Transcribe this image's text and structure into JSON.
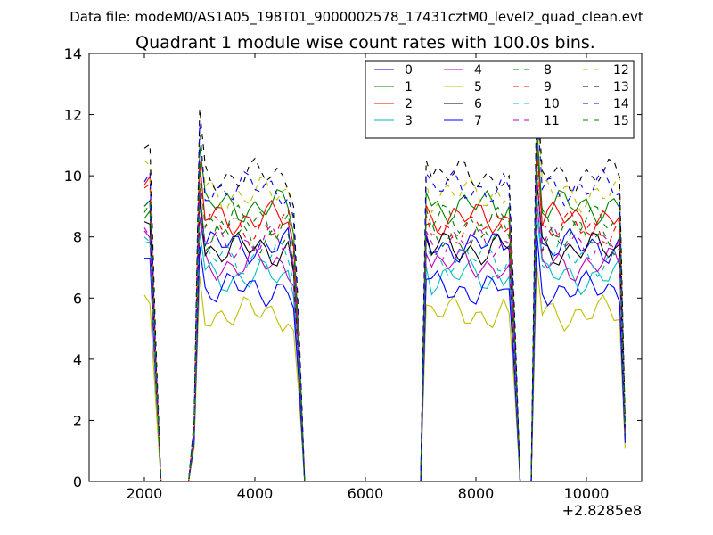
{
  "figure": {
    "suptitle": "Data file: modeM0/AS1A05_198T01_9000002578_17431cztM0_level2_quad_clean.evt"
  },
  "chart_data": {
    "type": "line",
    "title": "Quadrant 1 module wise count rates with 100.0s bins.",
    "xlabel": "",
    "ylabel": "",
    "x_offset_label": "+2.8285e8",
    "xlim": [
      1000,
      11000
    ],
    "ylim": [
      0,
      14
    ],
    "xticks": [
      2000,
      4000,
      6000,
      8000,
      10000
    ],
    "xtick_labels": [
      "2000",
      "4000",
      "6000",
      "8000",
      "10000"
    ],
    "yticks": [
      0,
      2,
      4,
      6,
      8,
      10,
      12,
      14
    ],
    "ytick_labels": [
      "0",
      "2",
      "4",
      "6",
      "8",
      "10",
      "12",
      "14"
    ],
    "legend": {
      "location": "top-right",
      "columns": 4
    },
    "bins": {
      "x_start": 2000,
      "step": 100,
      "segments": [
        [
          2000,
          2200
        ],
        [
          2900,
          4700
        ],
        [
          7100,
          8700
        ],
        [
          9100,
          10600
        ]
      ],
      "zero_ranges": [
        [
          2300,
          2700
        ],
        [
          4900,
          7000
        ],
        [
          8900,
          9000
        ]
      ],
      "end_x": 10700
    },
    "series": [
      {
        "name": "0",
        "color": "#0000ff",
        "dash": "solid",
        "level": 7.7,
        "start": 7.3
      },
      {
        "name": "1",
        "color": "#008000",
        "dash": "solid",
        "level": 9.0,
        "start": 8.6
      },
      {
        "name": "2",
        "color": "#ff0000",
        "dash": "solid",
        "level": 8.6,
        "start": 9.7
      },
      {
        "name": "3",
        "color": "#00bfbf",
        "dash": "solid",
        "level": 6.7,
        "start": 7.8
      },
      {
        "name": "4",
        "color": "#bf00bf",
        "dash": "solid",
        "level": 7.1,
        "start": 8.2
      },
      {
        "name": "5",
        "color": "#bfbf00",
        "dash": "solid",
        "level": 5.5,
        "start": 6.1
      },
      {
        "name": "6",
        "color": "#000000",
        "dash": "solid",
        "level": 7.6,
        "start": 8.5
      },
      {
        "name": "7",
        "color": "#0000ff",
        "dash": "solid",
        "level": 6.3,
        "start": 9.0
      },
      {
        "name": "8",
        "color": "#008000",
        "dash": "dashed",
        "level": 8.0,
        "start": 8.8
      },
      {
        "name": "9",
        "color": "#ff0000",
        "dash": "dashed",
        "level": 8.3,
        "start": 9.6
      },
      {
        "name": "10",
        "color": "#00bfbf",
        "dash": "dashed",
        "level": 7.3,
        "start": 8.0
      },
      {
        "name": "11",
        "color": "#bf00bf",
        "dash": "dashed",
        "level": 7.8,
        "start": 8.3
      },
      {
        "name": "12",
        "color": "#bfbf00",
        "dash": "dashed",
        "level": 9.4,
        "start": 10.5
      },
      {
        "name": "13",
        "color": "#000000",
        "dash": "dashed",
        "level": 10.0,
        "start": 10.9
      },
      {
        "name": "14",
        "color": "#0000ff",
        "dash": "dashed",
        "level": 9.6,
        "start": 9.8
      },
      {
        "name": "15",
        "color": "#008000",
        "dash": "dashed",
        "level": 8.5,
        "start": 9.0
      }
    ]
  }
}
